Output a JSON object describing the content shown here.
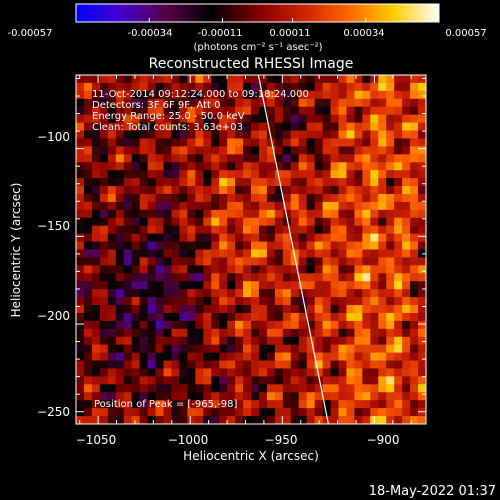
{
  "colorbar": {
    "ticks": [
      "-0.00057",
      "-0.00034",
      "-0.00011",
      "0.00011",
      "0.00034",
      "0.00057"
    ],
    "tick_values": [
      -0.00057,
      -0.00034,
      -0.00011,
      0.00011,
      0.00034,
      0.00057
    ],
    "range": [
      -0.00057,
      0.00057
    ],
    "unit_label": "(photons cm⁻² s⁻¹ asec⁻²)",
    "colors": [
      "#0000ff",
      "#4400cc",
      "#550044",
      "#000000",
      "#800000",
      "#cc2200",
      "#ff6600",
      "#ffcc00",
      "#ffffff"
    ]
  },
  "chart_data": {
    "type": "heatmap",
    "title": "Reconstructed RHESSI Image",
    "xlabel": "Heliocentric X (arcsec)",
    "ylabel": "Heliocentric Y (arcsec)",
    "xlim": [
      -1062,
      -872
    ],
    "ylim": [
      -257,
      -58
    ],
    "x_ticks": [
      -1050,
      -1000,
      -950,
      -900
    ],
    "x_tick_labels": [
      "−1050",
      "−1000",
      "−950",
      "−900"
    ],
    "y_ticks": [
      -100,
      -150,
      -200,
      -250
    ],
    "y_tick_labels": [
      "−100",
      "−150",
      "−200",
      "−250"
    ],
    "grid": false,
    "limb_line": [
      [
        -963,
        -58
      ],
      [
        -925,
        -257
      ]
    ],
    "peak": [
      -965,
      -98
    ],
    "annotations": [
      "11-Oct-2014 09:12:24.000 to 09:18:24.000",
      "Detectors: 3F 6F 9F, Att 0",
      "Energy Range: 25.0 - 50.0 keV",
      "Clean:    Total counts: 3.63e+03"
    ],
    "peak_label": "Position of Peak = [-965,-98]"
  },
  "footer": {
    "timestamp": "18-May-2022 01:37"
  },
  "colors": {
    "background": "#000000",
    "text": "#ffffff",
    "limb": "#ffffff"
  }
}
